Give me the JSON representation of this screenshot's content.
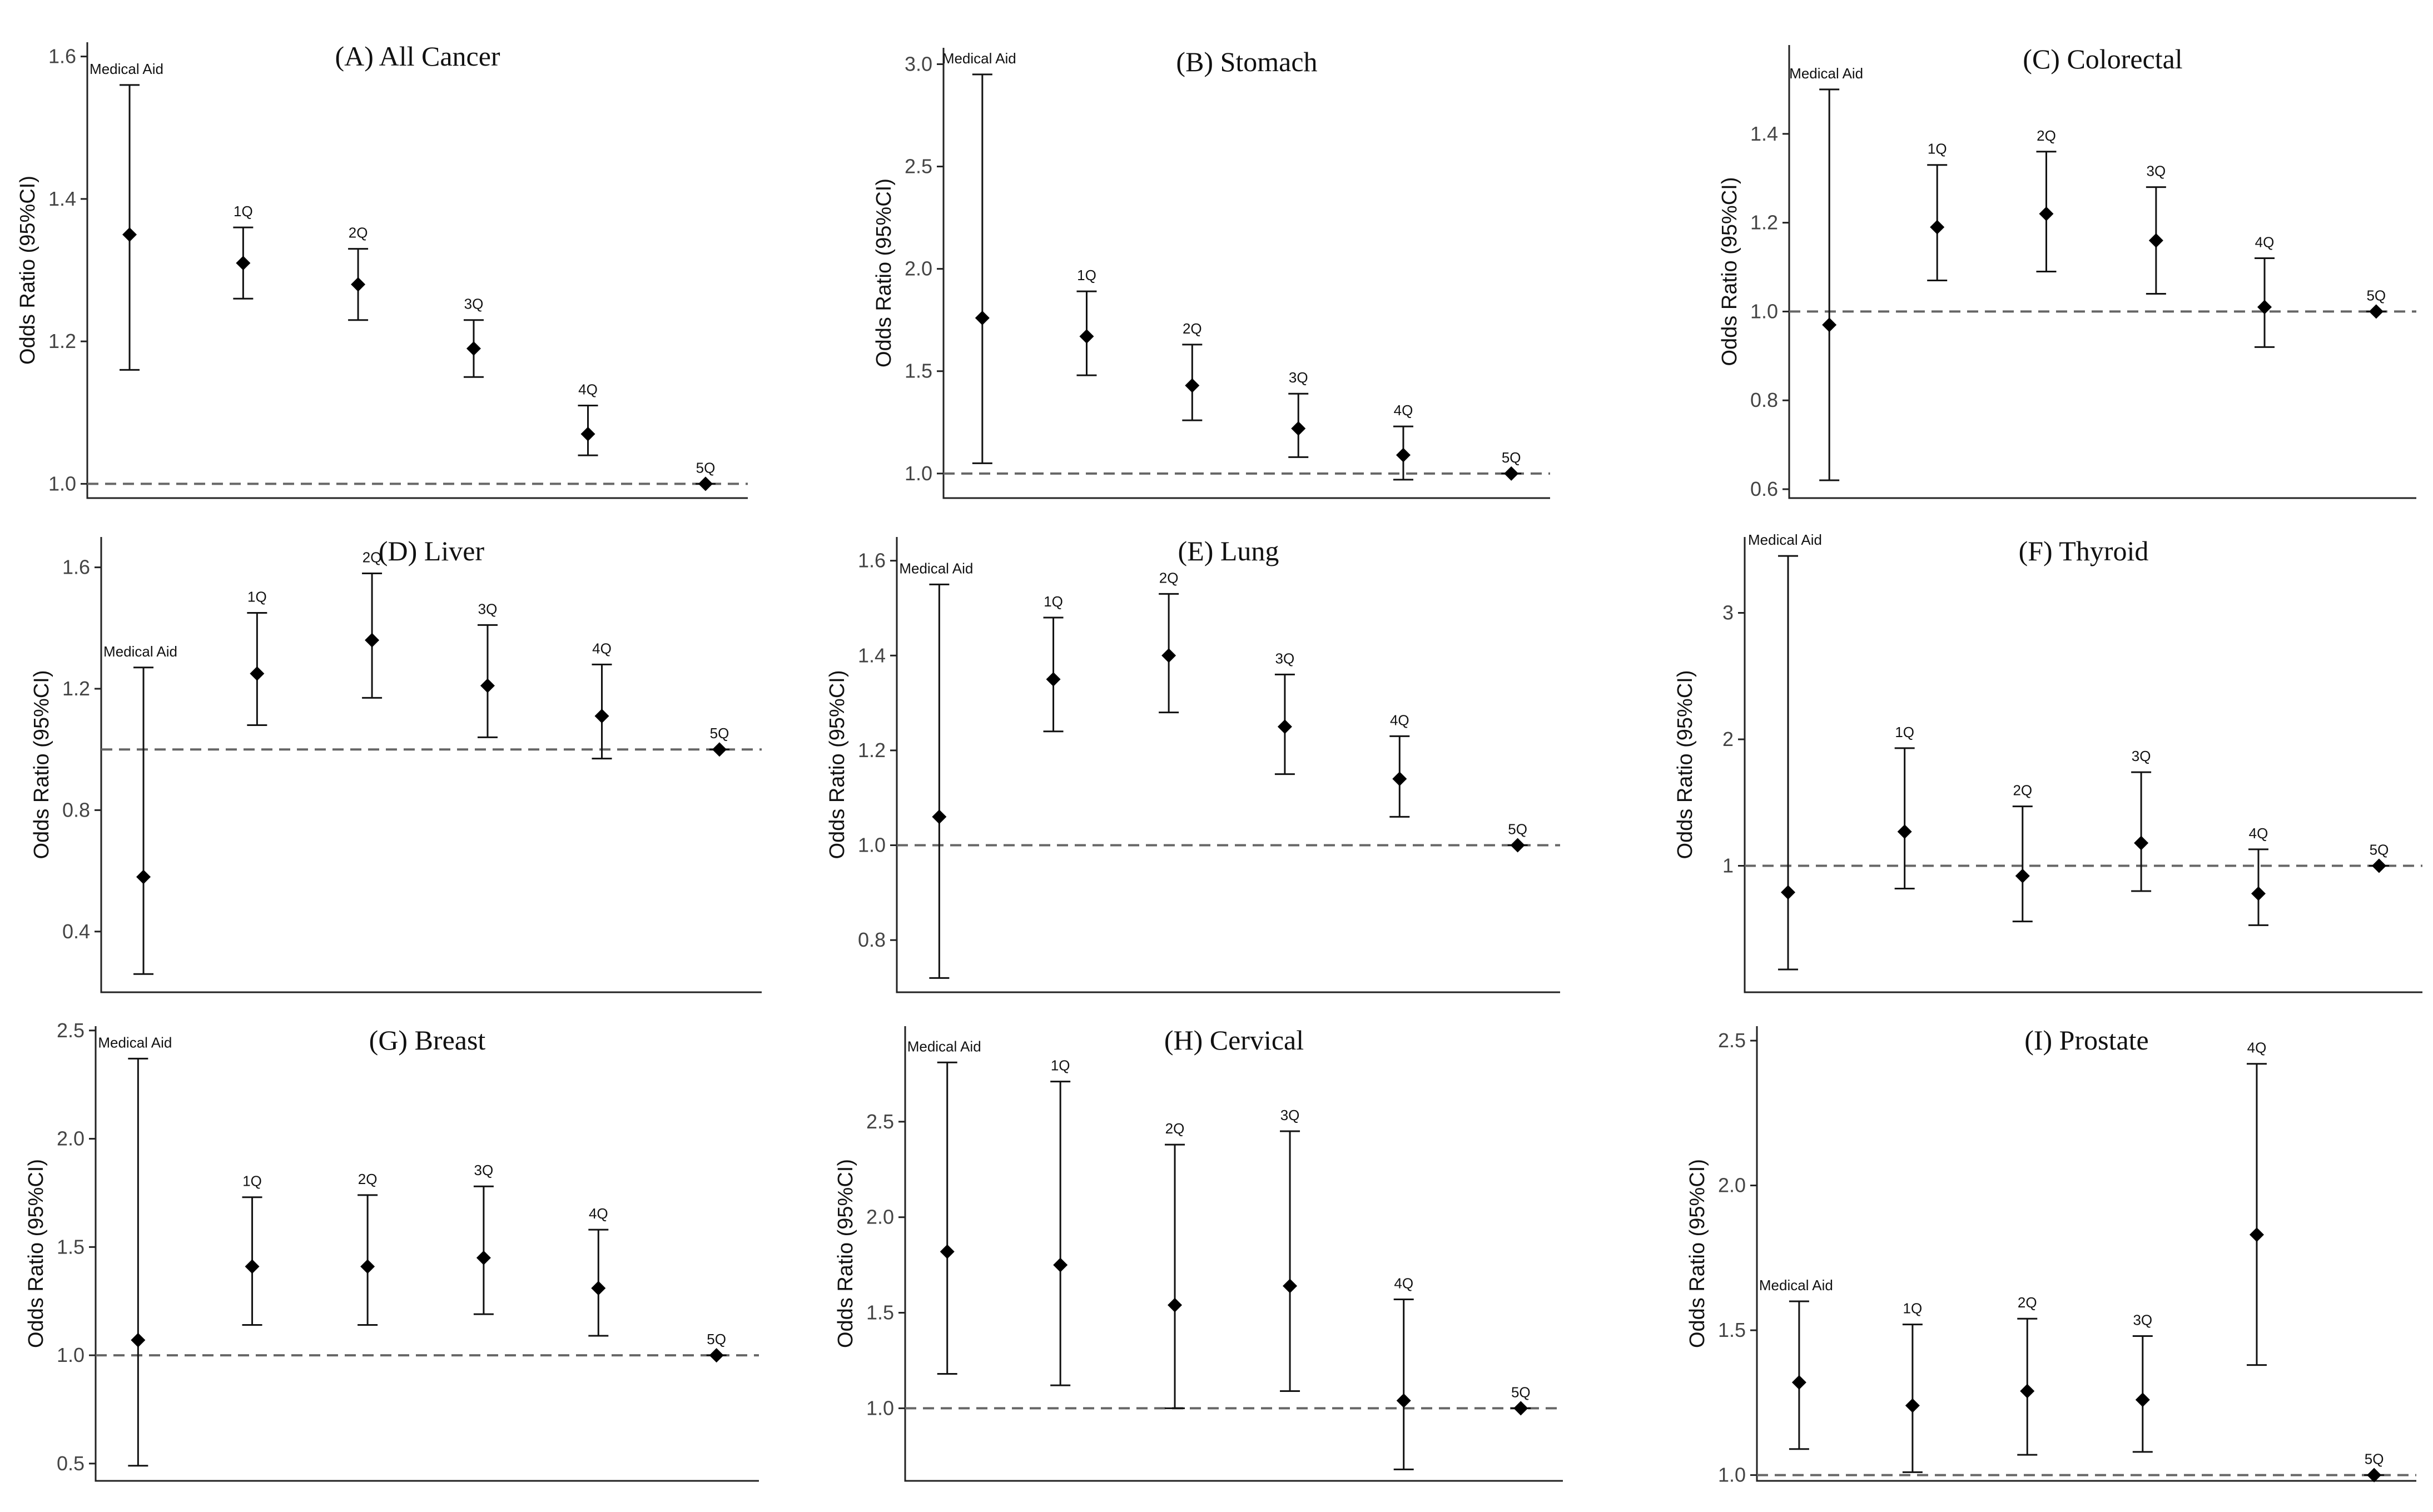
{
  "figure": {
    "ylabel": "Odds Ratio (95%CI)",
    "reference_value": 1.0
  },
  "chart_data": [
    {
      "type": "scatter",
      "subtype": "forest",
      "title": "(A) All Cancer",
      "ylabel": "Odds Ratio (95%CI)",
      "ylim": [
        0.98,
        1.62
      ],
      "yticks": [
        "1.0",
        "1.2",
        "1.4",
        "1.6"
      ],
      "categories": [
        "Medical Aid",
        "1Q",
        "2Q",
        "3Q",
        "4Q",
        "5Q"
      ],
      "values": [
        1.35,
        1.31,
        1.28,
        1.19,
        1.07,
        1.0
      ],
      "lower": [
        1.16,
        1.26,
        1.23,
        1.15,
        1.04,
        1.0
      ],
      "upper": [
        1.56,
        1.36,
        1.33,
        1.23,
        1.11,
        1.0
      ]
    },
    {
      "type": "scatter",
      "subtype": "forest",
      "title": "(B) Stomach",
      "ylabel": "Odds Ratio (95%CI)",
      "ylim": [
        0.88,
        3.08
      ],
      "yticks": [
        "1.0",
        "1.5",
        "2.0",
        "2.5",
        "3.0"
      ],
      "categories": [
        "Medical Aid",
        "1Q",
        "2Q",
        "3Q",
        "4Q",
        "5Q"
      ],
      "values": [
        1.76,
        1.67,
        1.43,
        1.22,
        1.09,
        1.0
      ],
      "lower": [
        1.05,
        1.48,
        1.26,
        1.08,
        0.97,
        1.0
      ],
      "upper": [
        2.95,
        1.89,
        1.63,
        1.39,
        1.23,
        1.0
      ]
    },
    {
      "type": "scatter",
      "subtype": "forest",
      "title": "(C) Colorectal",
      "ylabel": "Odds Ratio (95%CI)",
      "ylim": [
        0.58,
        1.6
      ],
      "yticks": [
        "0.6",
        "0.8",
        "1.0",
        "1.2",
        "1.4"
      ],
      "categories": [
        "Medical Aid",
        "1Q",
        "2Q",
        "3Q",
        "4Q",
        "5Q"
      ],
      "values": [
        0.97,
        1.19,
        1.22,
        1.16,
        1.01,
        1.0
      ],
      "lower": [
        0.62,
        1.07,
        1.09,
        1.04,
        0.92,
        1.0
      ],
      "upper": [
        1.5,
        1.33,
        1.36,
        1.28,
        1.12,
        1.0
      ]
    },
    {
      "type": "scatter",
      "subtype": "forest",
      "title": "(D) Liver",
      "ylabel": "Odds Ratio (95%CI)",
      "ylim": [
        0.2,
        1.7
      ],
      "yticks": [
        "0.4",
        "0.8",
        "1.2",
        "1.6"
      ],
      "categories": [
        "Medical Aid",
        "1Q",
        "2Q",
        "3Q",
        "4Q",
        "5Q"
      ],
      "values": [
        0.58,
        1.25,
        1.36,
        1.21,
        1.11,
        1.0
      ],
      "lower": [
        0.26,
        1.08,
        1.17,
        1.04,
        0.97,
        1.0
      ],
      "upper": [
        1.27,
        1.45,
        1.58,
        1.41,
        1.28,
        1.0
      ]
    },
    {
      "type": "scatter",
      "subtype": "forest",
      "title": "(E) Lung",
      "ylabel": "Odds Ratio (95%CI)",
      "ylim": [
        0.69,
        1.65
      ],
      "yticks": [
        "0.8",
        "1.0",
        "1.2",
        "1.4",
        "1.6"
      ],
      "categories": [
        "Medical Aid",
        "1Q",
        "2Q",
        "3Q",
        "4Q",
        "5Q"
      ],
      "values": [
        1.06,
        1.35,
        1.4,
        1.25,
        1.14,
        1.0
      ],
      "lower": [
        0.72,
        1.24,
        1.28,
        1.15,
        1.06,
        1.0
      ],
      "upper": [
        1.55,
        1.48,
        1.53,
        1.36,
        1.23,
        1.0
      ]
    },
    {
      "type": "scatter",
      "subtype": "forest",
      "title": "(F) Thyroid",
      "ylabel": "Odds Ratio (95%CI)",
      "ylim": [
        0.0,
        3.6
      ],
      "yticks": [
        "1",
        "2",
        "3"
      ],
      "categories": [
        "Medical Aid",
        "1Q",
        "2Q",
        "3Q",
        "4Q",
        "5Q"
      ],
      "values": [
        0.79,
        1.27,
        0.92,
        1.18,
        0.78,
        1.0
      ],
      "lower": [
        0.18,
        0.82,
        0.56,
        0.8,
        0.53,
        1.0
      ],
      "upper": [
        3.45,
        1.93,
        1.47,
        1.74,
        1.13,
        1.0
      ]
    },
    {
      "type": "scatter",
      "subtype": "forest",
      "title": "(G) Breast",
      "ylabel": "Odds Ratio (95%CI)",
      "ylim": [
        0.42,
        2.52
      ],
      "yticks": [
        "0.5",
        "1.0",
        "1.5",
        "2.0",
        "2.5"
      ],
      "categories": [
        "Medical Aid",
        "1Q",
        "2Q",
        "3Q",
        "4Q",
        "5Q"
      ],
      "values": [
        1.07,
        1.41,
        1.41,
        1.45,
        1.31,
        1.0
      ],
      "lower": [
        0.49,
        1.14,
        1.14,
        1.19,
        1.09,
        1.0
      ],
      "upper": [
        2.37,
        1.73,
        1.74,
        1.78,
        1.58,
        1.0
      ]
    },
    {
      "type": "scatter",
      "subtype": "forest",
      "title": "(H) Cervical",
      "ylabel": "Odds Ratio (95%CI)",
      "ylim": [
        0.62,
        3.0
      ],
      "yticks": [
        "1.0",
        "1.5",
        "2.0",
        "2.5"
      ],
      "categories": [
        "Medical Aid",
        "1Q",
        "2Q",
        "3Q",
        "4Q",
        "5Q"
      ],
      "values": [
        1.82,
        1.75,
        1.54,
        1.64,
        1.04,
        1.0
      ],
      "lower": [
        1.18,
        1.12,
        1.0,
        1.09,
        0.68,
        1.0
      ],
      "upper": [
        2.81,
        2.71,
        2.38,
        2.45,
        1.57,
        1.0
      ]
    },
    {
      "type": "scatter",
      "subtype": "forest",
      "title": "(I) Prostate",
      "ylabel": "Odds Ratio (95%CI)",
      "ylim": [
        0.98,
        2.55
      ],
      "yticks": [
        "1.0",
        "1.5",
        "2.0",
        "2.5"
      ],
      "categories": [
        "Medical Aid",
        "1Q",
        "2Q",
        "3Q",
        "4Q",
        "5Q"
      ],
      "values": [
        1.32,
        1.24,
        1.29,
        1.26,
        1.83,
        1.0
      ],
      "lower": [
        1.09,
        1.01,
        1.07,
        1.08,
        1.38,
        1.0
      ],
      "upper": [
        1.6,
        1.52,
        1.54,
        1.48,
        2.42,
        1.0
      ]
    }
  ]
}
